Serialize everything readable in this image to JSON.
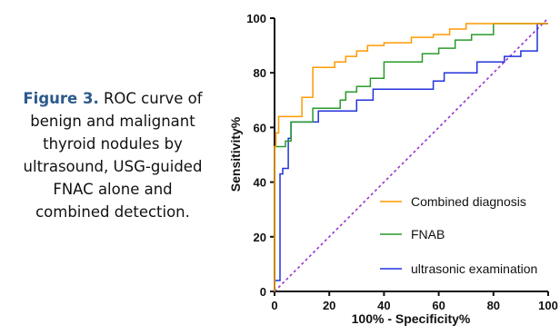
{
  "caption": {
    "figure_label": "Figure 3.",
    "lines": [
      "ROC curve of",
      "benign and malignant",
      "thyroid nodules by",
      "ultrasound, USG-guided",
      "FNAC alone and",
      "combined detection."
    ]
  },
  "chart_data": {
    "type": "line",
    "title": "",
    "xlabel": "100% - Specificity%",
    "ylabel": "Sensitivity%",
    "xlim": [
      0,
      100
    ],
    "ylim": [
      0,
      100
    ],
    "xticks": [
      "0",
      "20",
      "40",
      "60",
      "80",
      "100"
    ],
    "yticks": [
      "0",
      "20",
      "40",
      "60",
      "80",
      "100"
    ],
    "grid": false,
    "legend_position": "bottom-right",
    "series": [
      {
        "name": "Combined diagnosis",
        "color": "#ff9900",
        "steps": [
          [
            0,
            0
          ],
          [
            0,
            53
          ],
          [
            0.5,
            53
          ],
          [
            0.5,
            58
          ],
          [
            1.5,
            58
          ],
          [
            1.5,
            64
          ],
          [
            10,
            64
          ],
          [
            10,
            71
          ],
          [
            14,
            71
          ],
          [
            14,
            82
          ],
          [
            22,
            82
          ],
          [
            22,
            84
          ],
          [
            26,
            84
          ],
          [
            26,
            86
          ],
          [
            30,
            86
          ],
          [
            30,
            88
          ],
          [
            34,
            88
          ],
          [
            34,
            90
          ],
          [
            40,
            90
          ],
          [
            40,
            91
          ],
          [
            50,
            91
          ],
          [
            50,
            93
          ],
          [
            58,
            93
          ],
          [
            58,
            94
          ],
          [
            64,
            94
          ],
          [
            64,
            96
          ],
          [
            70,
            96
          ],
          [
            70,
            98
          ],
          [
            100,
            98
          ]
        ]
      },
      {
        "name": "FNAB",
        "color": "#2a9a2a",
        "steps": [
          [
            0,
            0
          ],
          [
            0,
            53
          ],
          [
            4,
            53
          ],
          [
            4,
            55
          ],
          [
            6,
            55
          ],
          [
            6,
            62
          ],
          [
            14,
            62
          ],
          [
            14,
            67
          ],
          [
            24,
            67
          ],
          [
            24,
            70
          ],
          [
            26,
            70
          ],
          [
            26,
            73
          ],
          [
            30,
            73
          ],
          [
            30,
            75
          ],
          [
            35,
            75
          ],
          [
            35,
            78
          ],
          [
            40,
            78
          ],
          [
            40,
            84
          ],
          [
            54,
            84
          ],
          [
            54,
            87
          ],
          [
            60,
            87
          ],
          [
            60,
            89
          ],
          [
            66,
            89
          ],
          [
            66,
            92
          ],
          [
            72,
            92
          ],
          [
            72,
            94
          ],
          [
            80,
            94
          ],
          [
            80,
            98
          ],
          [
            100,
            98
          ]
        ]
      },
      {
        "name": "ultrasonic examination",
        "color": "#2233dd",
        "steps": [
          [
            0,
            0
          ],
          [
            0,
            4
          ],
          [
            2,
            4
          ],
          [
            2,
            43
          ],
          [
            3,
            43
          ],
          [
            3,
            45
          ],
          [
            5,
            45
          ],
          [
            5,
            56
          ],
          [
            6,
            56
          ],
          [
            6,
            62
          ],
          [
            16,
            62
          ],
          [
            16,
            66
          ],
          [
            30,
            66
          ],
          [
            30,
            70
          ],
          [
            36,
            70
          ],
          [
            36,
            74
          ],
          [
            58,
            74
          ],
          [
            58,
            77
          ],
          [
            62,
            77
          ],
          [
            62,
            80
          ],
          [
            74,
            80
          ],
          [
            74,
            84
          ],
          [
            84,
            84
          ],
          [
            84,
            86
          ],
          [
            90,
            86
          ],
          [
            90,
            88
          ],
          [
            96,
            88
          ],
          [
            96,
            98
          ],
          [
            100,
            98
          ]
        ]
      },
      {
        "name": "",
        "color": "#9933cc",
        "dashed": true,
        "steps": [
          [
            0,
            0
          ],
          [
            100,
            100
          ]
        ]
      }
    ]
  }
}
